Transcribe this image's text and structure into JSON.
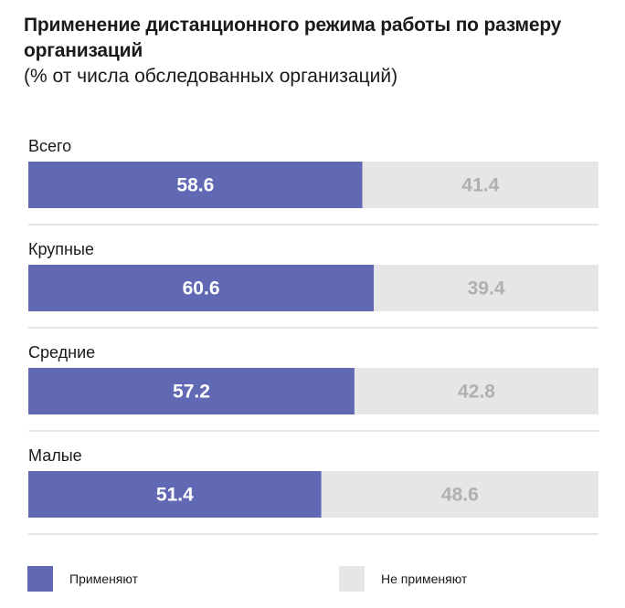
{
  "title": "Применение дистанционного режима работы по размеру организаций",
  "subtitle": "(% от числа обследованных организаций)",
  "colors": {
    "applied": "#6169b4",
    "not_applied": "#e6e6e6",
    "divider": "#cccccc"
  },
  "legend": {
    "applied": "Применяют",
    "not_applied": "Не применяют"
  },
  "chart_data": {
    "type": "bar",
    "orientation": "horizontal",
    "stacked": true,
    "title": "Применение дистанционного режима работы по размеру организаций",
    "subtitle": "(% от числа обследованных организаций)",
    "categories": [
      "Всего",
      "Крупные",
      "Средние",
      "Малые"
    ],
    "series": [
      {
        "name": "Применяют",
        "values": [
          58.6,
          60.6,
          57.2,
          51.4
        ]
      },
      {
        "name": "Не применяют",
        "values": [
          41.4,
          39.4,
          42.8,
          48.6
        ]
      }
    ],
    "xlim": [
      0,
      100
    ],
    "grid": false,
    "legend_position": "bottom"
  }
}
